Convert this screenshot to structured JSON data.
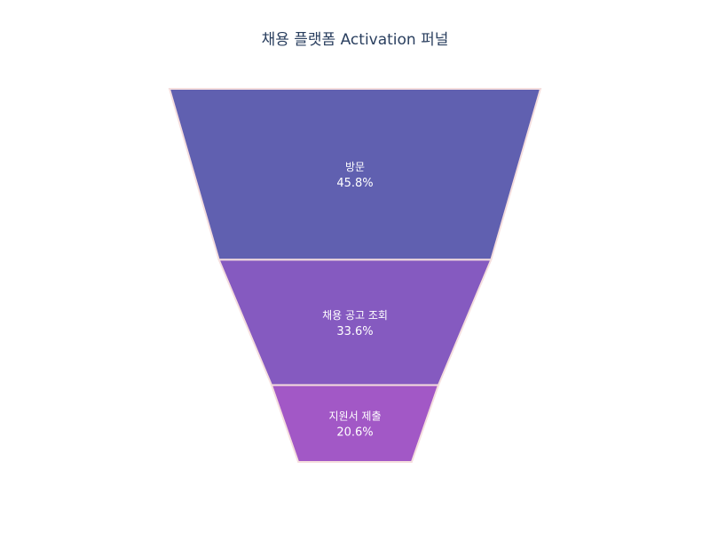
{
  "chart_data": {
    "type": "funnel",
    "title": "채용 플랫폼 Activation 퍼널",
    "stages": [
      {
        "label": "방문",
        "value": 45.8,
        "value_text": "45.8%",
        "color": "#6060b0"
      },
      {
        "label": "채용 공고 조회",
        "value": 33.6,
        "value_text": "33.6%",
        "color": "#855ac0"
      },
      {
        "label": "지원서 제출",
        "value": 20.6,
        "value_text": "20.6%",
        "color": "#a258c6"
      }
    ],
    "edge_color": "#f5dede"
  }
}
